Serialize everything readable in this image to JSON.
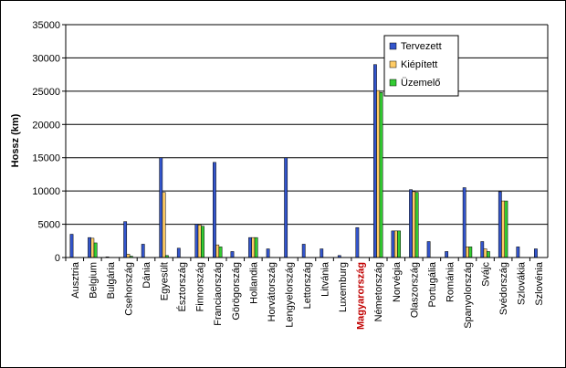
{
  "chart_data": {
    "type": "bar",
    "ylabel": "Hossz (km)",
    "ylim": [
      0,
      35000
    ],
    "yticks": [
      0,
      5000,
      10000,
      15000,
      20000,
      25000,
      30000,
      35000
    ],
    "grid": true,
    "legend_position": "top-right",
    "categories": [
      "Ausztria",
      "Belgium",
      "Bulgária",
      "Csehország",
      "Dánia",
      "Egyesült",
      "Észtország",
      "Finnország",
      "Franciaország",
      "Görögország",
      "Hollandia",
      "Horvátország",
      "Lengyelország",
      "Lettország",
      "Litvánia",
      "Luxemburg",
      "Magyarország",
      "Németország",
      "Norvégia",
      "Olaszország",
      "Portugália",
      "Románia",
      "Spanyolország",
      "Svájc",
      "Svédország",
      "Szlovákia",
      "Szlovénia"
    ],
    "highlight_category": "Magyarország",
    "highlight_color": "#c00000",
    "series": [
      {
        "name": "Tervezett",
        "color": "#3355cc",
        "values": [
          3500,
          3000,
          100,
          5400,
          2000,
          15000,
          1400,
          5000,
          14300,
          900,
          3000,
          1300,
          15000,
          2000,
          1300,
          300,
          4500,
          29000,
          4000,
          10200,
          2400,
          900,
          10500,
          2400,
          9900,
          1600,
          1300
        ]
      },
      {
        "name": "Kiépített",
        "color": "#ffcc66",
        "values": [
          0,
          2900,
          0,
          500,
          0,
          9800,
          0,
          4900,
          1900,
          0,
          3000,
          0,
          0,
          0,
          0,
          0,
          0,
          25100,
          4000,
          9900,
          0,
          0,
          1600,
          1300,
          8500,
          0,
          0
        ]
      },
      {
        "name": "Üzemelő",
        "color": "#33cc33",
        "values": [
          0,
          2200,
          0,
          200,
          0,
          300,
          0,
          4700,
          1600,
          0,
          3000,
          0,
          0,
          0,
          0,
          0,
          0,
          24800,
          4000,
          9800,
          0,
          0,
          1600,
          900,
          8500,
          0,
          0
        ]
      }
    ]
  }
}
